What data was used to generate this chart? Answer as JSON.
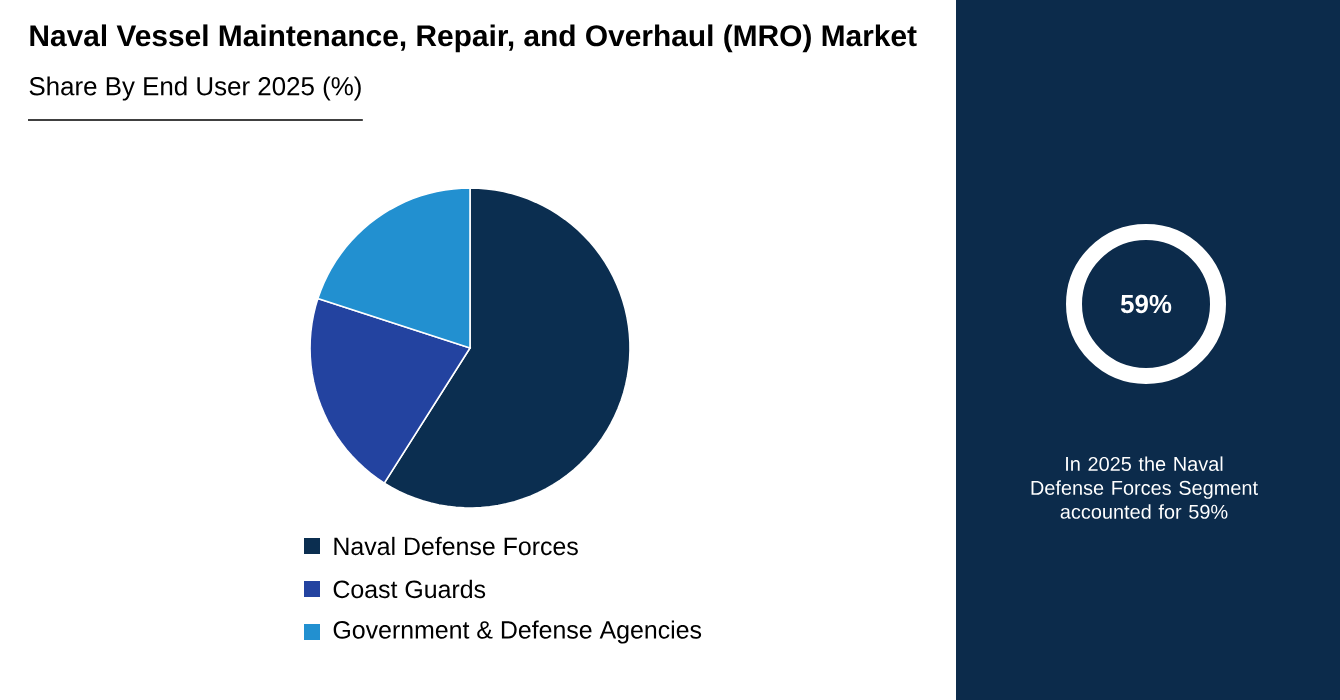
{
  "chart_data": {
    "type": "pie",
    "title": "Naval Vessel Maintenance, Repair, and Overhaul (MRO) Market",
    "subtitle": "Share By End User 2025 (%)",
    "categories": [
      "Naval Defense Forces",
      "Coast Guards",
      "Government & Defense Agencies"
    ],
    "values": [
      59,
      21,
      20
    ],
    "colors": [
      "#0b2e50",
      "#2343a0",
      "#2290d0"
    ],
    "legend": "bottom",
    "annotations": [
      "59%",
      "In 2025 the Naval Defense Forces Segment accounted for 59%"
    ]
  }
}
